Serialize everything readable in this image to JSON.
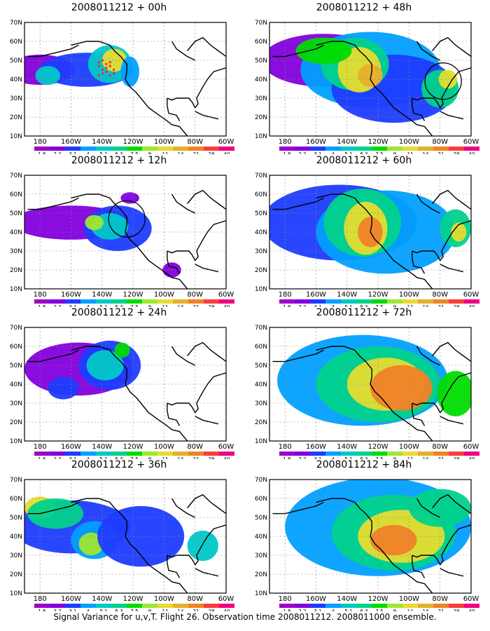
{
  "panels": [
    {
      "title": "2008011212 + 00h",
      "target_circle": null,
      "observation_dots": true
    },
    {
      "title": "2008011212 + 48h",
      "target_circle": "east-coast",
      "observation_dots": false
    },
    {
      "title": "2008011212 + 12h",
      "target_circle": "west-coast",
      "observation_dots": false
    },
    {
      "title": "2008011212 + 60h",
      "target_circle": null,
      "observation_dots": false
    },
    {
      "title": "2008011212 + 24h",
      "target_circle": null,
      "observation_dots": false
    },
    {
      "title": "2008011212 + 72h",
      "target_circle": null,
      "observation_dots": false
    },
    {
      "title": "2008011212 + 36h",
      "target_circle": null,
      "observation_dots": false
    },
    {
      "title": "2008011212 + 84h",
      "target_circle": null,
      "observation_dots": false
    }
  ],
  "lat_labels": [
    "70N",
    "60N",
    "50N",
    "40N",
    "30N",
    "20N",
    "10N"
  ],
  "lon_labels": [
    "180",
    "160W",
    "140W",
    "120W",
    "100W",
    "80W",
    "60W"
  ],
  "colorbar": {
    "labels": [
      "1.6",
      "2.2",
      "3.1",
      "4",
      "5.1",
      "6.3",
      "7.5",
      "9",
      "11",
      "14",
      "21",
      "29",
      "40"
    ],
    "colors": [
      "#a000c8",
      "#8200dc",
      "#1e3cff",
      "#00a0ff",
      "#00c8c8",
      "#00d28c",
      "#00dc00",
      "#a0e632",
      "#e6dc32",
      "#e6af2d",
      "#f08228",
      "#fa3c3c",
      "#f00082"
    ]
  },
  "caption": "Signal Variance for u,v,T. Flight 26. Observation time 2008011212. 2008011000 ensemble."
}
